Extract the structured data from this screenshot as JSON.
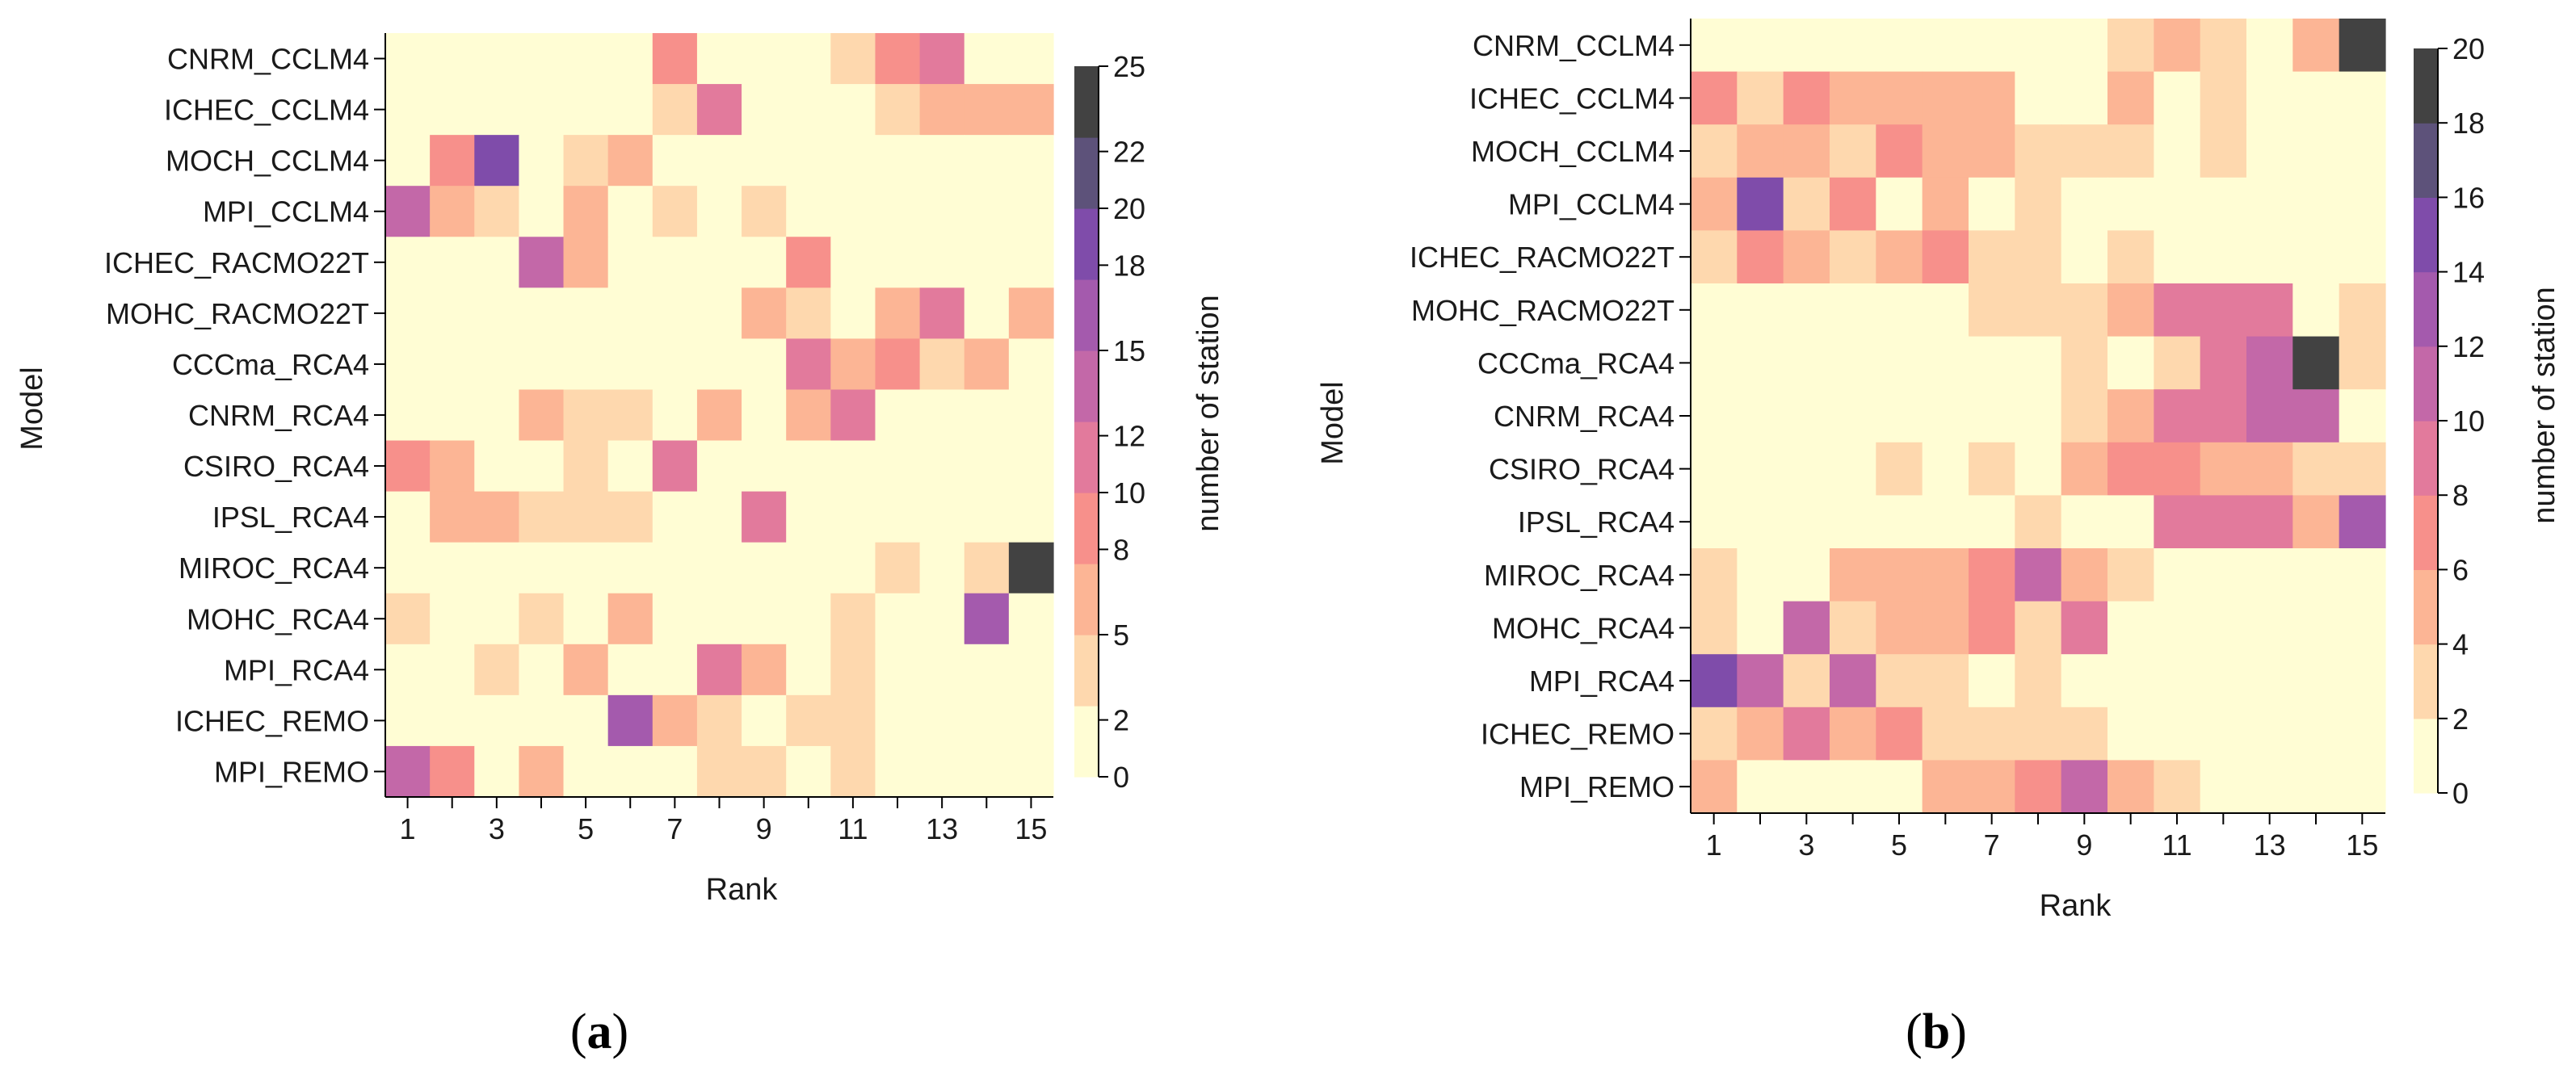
{
  "chart_data": [
    {
      "type": "heatmap",
      "panel_label": "a",
      "xlabel": "Rank",
      "ylabel": "Model",
      "colorbar_label": "number of station",
      "x_tick_labels": [
        "1",
        "3",
        "5",
        "7",
        "9",
        "11",
        "13",
        "15"
      ],
      "colorbar_ticks": [
        0,
        2,
        5,
        8,
        10,
        12,
        15,
        18,
        20,
        22,
        25
      ],
      "colorbar_tick_labels": [
        "0",
        "2",
        "5",
        "8",
        "10",
        "12",
        "15",
        "18",
        "20",
        "22",
        "25"
      ],
      "rows": [
        "CNRM_CCLM4",
        "ICHEC_CCLM4",
        "MOCH_CCLM4",
        "MPI_CCLM4",
        "ICHEC_RACMO22T",
        "MOHC_RACMO22T",
        "CCCma_RCA4",
        "CNRM_RCA4",
        "CSIRO_RCA4",
        "IPSL_RCA4",
        "MIROC_RCA4",
        "MOHC_RCA4",
        "MPI_RCA4",
        "ICHEC_REMO",
        "MPI_REMO"
      ],
      "values": [
        [
          0,
          0,
          0,
          0,
          0,
          0,
          9,
          0,
          0,
          0,
          4,
          9,
          11,
          0,
          0
        ],
        [
          0,
          0,
          0,
          0,
          0,
          0,
          3,
          12,
          0,
          0,
          0,
          4,
          7,
          7,
          7
        ],
        [
          0,
          9,
          19,
          0,
          4,
          7,
          0,
          0,
          0,
          0,
          0,
          0,
          0,
          0,
          0
        ],
        [
          13,
          6,
          3,
          0,
          7,
          0,
          3,
          0,
          3,
          0,
          0,
          0,
          0,
          0,
          0
        ],
        [
          0,
          0,
          0,
          14,
          7,
          0,
          0,
          0,
          0,
          9,
          0,
          0,
          0,
          0,
          0
        ],
        [
          0,
          0,
          0,
          0,
          0,
          0,
          0,
          0,
          6,
          3,
          0,
          7,
          12,
          0,
          7
        ],
        [
          0,
          0,
          0,
          0,
          0,
          0,
          0,
          0,
          0,
          11,
          7,
          9,
          4,
          6,
          0
        ],
        [
          0,
          0,
          0,
          6,
          4,
          4,
          0,
          6,
          0,
          7,
          10,
          0,
          0,
          0,
          0
        ],
        [
          9,
          6,
          0,
          0,
          4,
          0,
          11,
          0,
          0,
          0,
          0,
          0,
          0,
          0,
          0
        ],
        [
          0,
          6,
          6,
          4,
          4,
          4,
          0,
          0,
          11,
          0,
          0,
          0,
          0,
          0,
          0
        ],
        [
          0,
          0,
          0,
          0,
          0,
          0,
          0,
          0,
          0,
          0,
          0,
          4,
          0,
          4,
          25
        ],
        [
          3,
          0,
          0,
          3,
          0,
          6,
          0,
          0,
          0,
          0,
          4,
          0,
          0,
          16,
          0
        ],
        [
          0,
          0,
          3,
          0,
          6,
          0,
          0,
          10,
          6,
          0,
          4,
          0,
          0,
          0,
          0
        ],
        [
          0,
          0,
          0,
          0,
          0,
          17,
          6,
          3,
          0,
          3,
          4,
          0,
          0,
          0,
          0
        ],
        [
          13,
          9,
          0,
          6,
          0,
          0,
          0,
          3,
          3,
          0,
          4,
          0,
          0,
          0,
          0
        ]
      ]
    },
    {
      "type": "heatmap",
      "panel_label": "b",
      "xlabel": "Rank",
      "ylabel": "Model",
      "colorbar_label": "number of station",
      "x_tick_labels": [
        "1",
        "3",
        "5",
        "7",
        "9",
        "11",
        "13",
        "15"
      ],
      "colorbar_ticks": [
        0,
        2,
        4,
        6,
        8,
        10,
        12,
        14,
        16,
        18,
        20
      ],
      "colorbar_tick_labels": [
        "0",
        "2",
        "4",
        "6",
        "8",
        "10",
        "12",
        "14",
        "16",
        "18",
        "20"
      ],
      "rows": [
        "CNRM_CCLM4",
        "ICHEC_CCLM4",
        "MOCH_CCLM4",
        "MPI_CCLM4",
        "ICHEC_RACMO22T",
        "MOHC_RACMO22T",
        "CCCma_RCA4",
        "CNRM_RCA4",
        "CSIRO_RCA4",
        "IPSL_RCA4",
        "MIROC_RCA4",
        "MOHC_RCA4",
        "MPI_RCA4",
        "ICHEC_REMO",
        "MPI_REMO"
      ],
      "values": [
        [
          0,
          0,
          0,
          0,
          0,
          0,
          0,
          0,
          0,
          3,
          5,
          3,
          0,
          5,
          20
        ],
        [
          7,
          3,
          7,
          4,
          4,
          5,
          5,
          0,
          0,
          5,
          0,
          3,
          0,
          0,
          0
        ],
        [
          3,
          5,
          5,
          3,
          7,
          5,
          5,
          3,
          3,
          3,
          0,
          3,
          0,
          0,
          0
        ],
        [
          5,
          15,
          3,
          7,
          0,
          5,
          0,
          3,
          0,
          0,
          0,
          0,
          0,
          0,
          0
        ],
        [
          3,
          7,
          5,
          3,
          5,
          7,
          3,
          3,
          0,
          3,
          0,
          0,
          0,
          0,
          0
        ],
        [
          0,
          0,
          0,
          0,
          0,
          0,
          3,
          3,
          3,
          5,
          9,
          9,
          9,
          0,
          3
        ],
        [
          0,
          0,
          0,
          0,
          0,
          0,
          0,
          0,
          3,
          0,
          3,
          9,
          11,
          18,
          3
        ],
        [
          0,
          0,
          0,
          0,
          0,
          0,
          0,
          0,
          3,
          5,
          9,
          9,
          11,
          11,
          0
        ],
        [
          0,
          0,
          0,
          0,
          3,
          0,
          3,
          0,
          5,
          7,
          7,
          5,
          5,
          3,
          3
        ],
        [
          0,
          0,
          0,
          0,
          0,
          0,
          0,
          3,
          0,
          0,
          9,
          9,
          9,
          5,
          12
        ],
        [
          3,
          0,
          0,
          5,
          5,
          5,
          7,
          10,
          5,
          3,
          0,
          0,
          0,
          0,
          0
        ],
        [
          3,
          0,
          10,
          3,
          5,
          5,
          7,
          3,
          8,
          0,
          0,
          0,
          0,
          0,
          0
        ],
        [
          15,
          10,
          3,
          10,
          3,
          3,
          0,
          3,
          0,
          0,
          0,
          0,
          0,
          0,
          0
        ],
        [
          3,
          5,
          9,
          5,
          7,
          3,
          3,
          3,
          3,
          0,
          0,
          0,
          0,
          0,
          0
        ],
        [
          5,
          0,
          0,
          0,
          0,
          5,
          5,
          7,
          11,
          5,
          3,
          0,
          0,
          0,
          0
        ]
      ]
    }
  ]
}
